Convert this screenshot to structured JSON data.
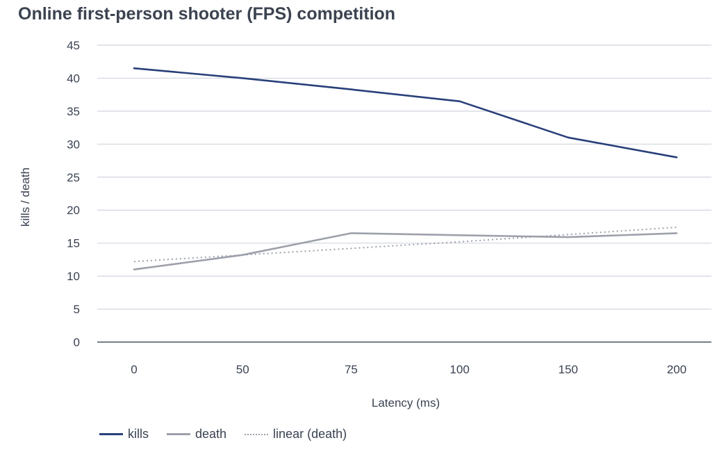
{
  "chart_data": {
    "type": "line",
    "title": "Online first-person shooter (FPS) competition",
    "xlabel": "Latency (ms)",
    "ylabel": "kills / death",
    "categories": [
      "0",
      "50",
      "75",
      "100",
      "150",
      "200"
    ],
    "ylim": [
      0,
      45
    ],
    "yticks": [
      0,
      5,
      10,
      15,
      20,
      25,
      30,
      35,
      40,
      45
    ],
    "grid": true,
    "legend_position": "bottom-left",
    "series": [
      {
        "name": "kills",
        "values": [
          41.5,
          40.0,
          38.3,
          36.5,
          31.0,
          28.0
        ],
        "color": "#283f7a",
        "style": "solid"
      },
      {
        "name": "death",
        "values": [
          11.0,
          13.2,
          16.5,
          16.2,
          15.9,
          16.5
        ],
        "color": "#9da0ab",
        "style": "solid"
      },
      {
        "name": "linear (death)",
        "values": [
          12.2,
          13.2,
          14.2,
          15.2,
          16.3,
          17.4
        ],
        "color": "#9da0ab",
        "style": "dotted"
      }
    ]
  }
}
